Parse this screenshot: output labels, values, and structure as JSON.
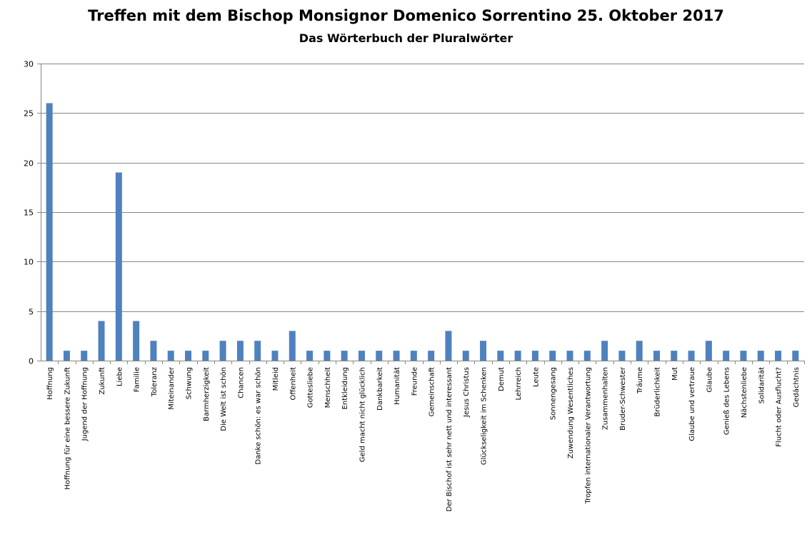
{
  "chart_data": {
    "type": "bar",
    "title": "Treffen mit dem Bischop Monsignor Domenico Sorrentino 25. Oktober 2017",
    "subtitle": "Das Wörterbuch der Pluralwörter",
    "xlabel": "",
    "ylabel": "",
    "ylim": [
      0,
      30
    ],
    "yticks": [
      0,
      5,
      10,
      15,
      20,
      25,
      30
    ],
    "grid": true,
    "legend": "none",
    "bar_color": "#4F81BD",
    "categories": [
      "Hoffnung",
      "Hoffnung für eine bessere Zukunft",
      "Jugend der Hoffnung",
      "Zukunft",
      "Liebe",
      "Familie",
      "Toleranz",
      "Miteinander",
      "Schwung",
      "Barmherzigkeit",
      "Die Welt ist schön",
      "Chancen",
      "Danke schön: es war schön",
      "Mitleid",
      "Offenheit",
      "Gottesliebe",
      "Menschheit",
      "Entkleidung",
      "Geld macht nicht glücklich",
      "Dankbarkeit",
      "Humanität",
      "Freunde",
      "Gemeinschaft",
      "Der Bischof ist sehr nett und interessant",
      "Jesus Christus",
      "Glückseligkeit im Schenken",
      "Demut",
      "Lehrreich",
      "Leute",
      "Sonnengesang",
      "Zuwendung Wesentliches",
      "Tropfen internationaler Verantwortung",
      "Zusammenhalten",
      "Bruder-Schwester",
      "Träume",
      "Brüderlichkeit",
      "Mut",
      "Glaube und vertraue",
      "Glaube",
      "Genieß des Lebens",
      "Nächstenliebe",
      "Solidarität",
      "Flucht oder Ausflucht?",
      "Gedächtnis"
    ],
    "values": [
      26,
      1,
      1,
      4,
      19,
      4,
      2,
      1,
      1,
      1,
      2,
      2,
      2,
      1,
      3,
      1,
      1,
      1,
      1,
      1,
      1,
      1,
      1,
      3,
      1,
      2,
      1,
      1,
      1,
      1,
      1,
      1,
      2,
      1,
      2,
      1,
      1,
      1,
      2,
      1,
      1,
      1,
      1,
      1
    ]
  }
}
